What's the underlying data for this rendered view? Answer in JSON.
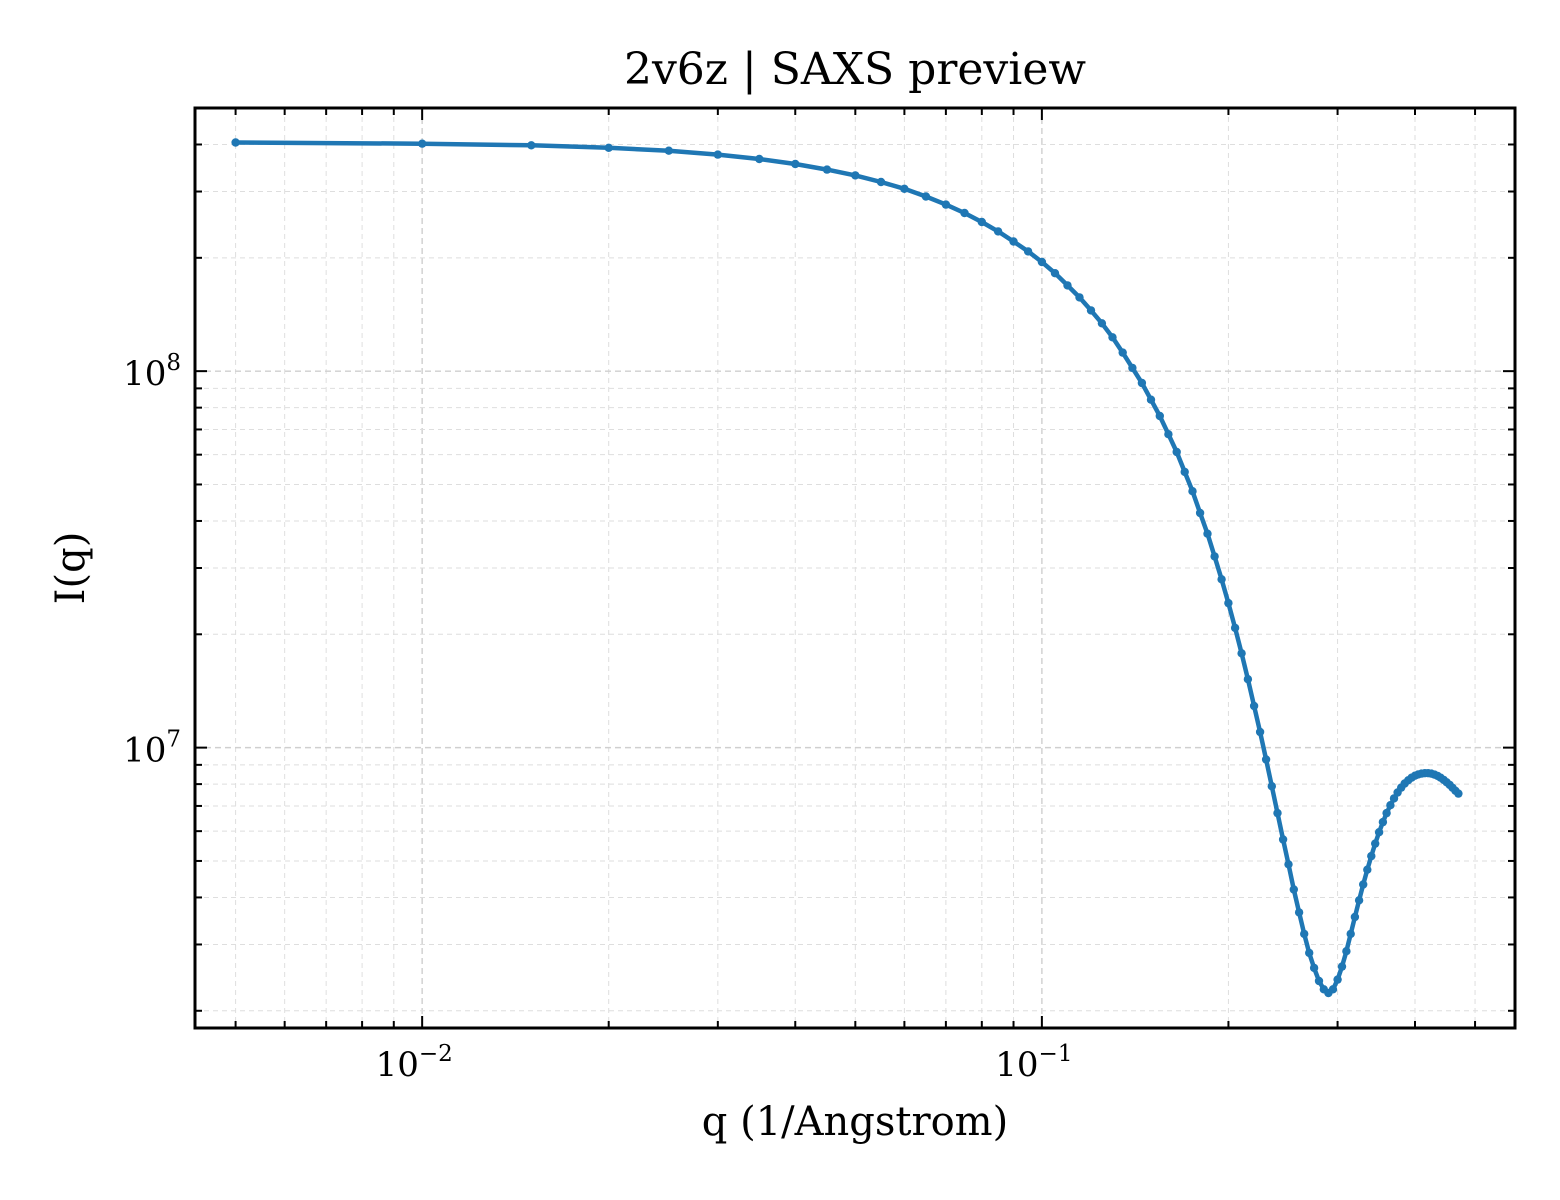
{
  "chart_data": {
    "type": "line",
    "title": "2v6z | SAXS preview",
    "xlabel": "q (1/Angstrom)",
    "ylabel": "I(q)",
    "xscale": "log",
    "yscale": "log",
    "xlim": [
      0.0043,
      0.58
    ],
    "ylim": [
      1800000.0,
      500000000.0
    ],
    "grid": "on",
    "x_ticks": [
      {
        "value": 0.01,
        "base": "10",
        "exp": "−2"
      },
      {
        "value": 0.1,
        "base": "10",
        "exp": "−1"
      }
    ],
    "y_ticks": [
      {
        "value": 10000000,
        "base": "10",
        "exp": "7"
      },
      {
        "value": 100000000,
        "base": "10",
        "exp": "8"
      }
    ],
    "series": [
      {
        "color": "#1f77b4",
        "points": [
          [
            0.005,
            405000000.0
          ],
          [
            0.01,
            402000000.0
          ],
          [
            0.015,
            398000000.0
          ],
          [
            0.02,
            392000000.0
          ],
          [
            0.025,
            385000000.0
          ],
          [
            0.03,
            376000000.0
          ],
          [
            0.035,
            366000000.0
          ],
          [
            0.04,
            355000000.0
          ],
          [
            0.045,
            343000000.0
          ],
          [
            0.05,
            331000000.0
          ],
          [
            0.055,
            318000000.0
          ],
          [
            0.06,
            305000000.0
          ],
          [
            0.065,
            291000000.0
          ],
          [
            0.07,
            277000000.0
          ],
          [
            0.075,
            263000000.0
          ],
          [
            0.08,
            249000000.0
          ],
          [
            0.085,
            235000000.0
          ],
          [
            0.09,
            221000000.0
          ],
          [
            0.095,
            208000000.0
          ],
          [
            0.1,
            195000000.0
          ],
          [
            0.105,
            182000000.0
          ],
          [
            0.11,
            169000000.0
          ],
          [
            0.115,
            157000000.0
          ],
          [
            0.12,
            145000000.0
          ],
          [
            0.125,
            134000000.0
          ],
          [
            0.13,
            123000000.0
          ],
          [
            0.135,
            112000000.0
          ],
          [
            0.14,
            102000000.0
          ],
          [
            0.145,
            93000000.0
          ],
          [
            0.15,
            84000000.0
          ],
          [
            0.155,
            76000000.0
          ],
          [
            0.16,
            68000000.0
          ],
          [
            0.165,
            61000000.0
          ],
          [
            0.17,
            54000000.0
          ],
          [
            0.175,
            48000000.0
          ],
          [
            0.18,
            42000000.0
          ],
          [
            0.185,
            37000000.0
          ],
          [
            0.19,
            32200000.0
          ],
          [
            0.195,
            28000000.0
          ],
          [
            0.2,
            24200000.0
          ],
          [
            0.205,
            20800000.0
          ],
          [
            0.21,
            17800000.0
          ],
          [
            0.215,
            15200000.0
          ],
          [
            0.22,
            12900000.0
          ],
          [
            0.225,
            11000000.0
          ],
          [
            0.23,
            9300000.0
          ],
          [
            0.235,
            7900000.0
          ],
          [
            0.24,
            6700000.0
          ],
          [
            0.245,
            5700000.0
          ],
          [
            0.25,
            4900000.0
          ],
          [
            0.255,
            4200000.0
          ],
          [
            0.26,
            3650000.0
          ],
          [
            0.265,
            3200000.0
          ],
          [
            0.27,
            2850000.0
          ],
          [
            0.275,
            2600000.0
          ],
          [
            0.28,
            2400000.0
          ],
          [
            0.285,
            2280000.0
          ],
          [
            0.29,
            2230000.0
          ],
          [
            0.295,
            2280000.0
          ],
          [
            0.3,
            2420000.0
          ],
          [
            0.305,
            2620000.0
          ],
          [
            0.31,
            2880000.0
          ],
          [
            0.315,
            3200000.0
          ],
          [
            0.32,
            3550000.0
          ],
          [
            0.325,
            3930000.0
          ],
          [
            0.33,
            4330000.0
          ],
          [
            0.335,
            4740000.0
          ],
          [
            0.34,
            5150000.0
          ],
          [
            0.345,
            5560000.0
          ],
          [
            0.35,
            5960000.0
          ],
          [
            0.355,
            6340000.0
          ],
          [
            0.36,
            6700000.0
          ],
          [
            0.365,
            7030000.0
          ],
          [
            0.37,
            7330000.0
          ],
          [
            0.375,
            7600000.0
          ],
          [
            0.38,
            7830000.0
          ],
          [
            0.385,
            8030000.0
          ],
          [
            0.39,
            8190000.0
          ],
          [
            0.395,
            8320000.0
          ],
          [
            0.4,
            8420000.0
          ],
          [
            0.405,
            8490000.0
          ],
          [
            0.41,
            8530000.0
          ],
          [
            0.415,
            8550000.0
          ],
          [
            0.42,
            8550000.0
          ],
          [
            0.425,
            8530000.0
          ],
          [
            0.43,
            8480000.0
          ],
          [
            0.435,
            8410000.0
          ],
          [
            0.44,
            8320000.0
          ],
          [
            0.445,
            8210000.0
          ],
          [
            0.45,
            8090000.0
          ],
          [
            0.455,
            7960000.0
          ],
          [
            0.46,
            7820000.0
          ],
          [
            0.465,
            7680000.0
          ],
          [
            0.47,
            7550000.0
          ]
        ]
      }
    ]
  }
}
